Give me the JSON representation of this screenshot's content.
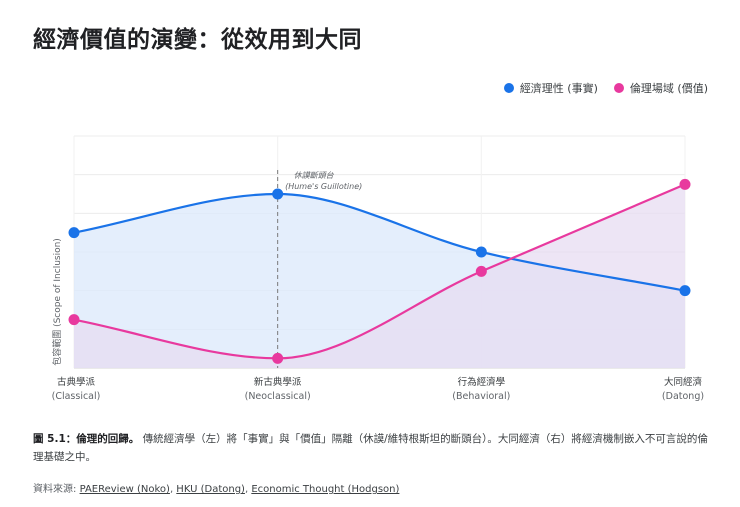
{
  "title": "經濟價值的演變：從效用到大同",
  "legend": [
    {
      "label": "經濟理性 (事實)",
      "color": "#1a73e8"
    },
    {
      "label": "倫理場域 (價值)",
      "color": "#e8399e"
    }
  ],
  "chart_data": {
    "type": "line",
    "categories": [
      {
        "name": "古典學派",
        "sub": "(Classical)"
      },
      {
        "name": "新古典學派",
        "sub": "(Neoclassical)"
      },
      {
        "name": "行為經濟學",
        "sub": "(Behavioral)"
      },
      {
        "name": "大同經濟",
        "sub": "(Datong)"
      }
    ],
    "ylabel": "包容範圍 (Scope of Inclusion)",
    "ylim": [
      0,
      6
    ],
    "grid": true,
    "legend_position": "top-right",
    "series": [
      {
        "name": "經濟理性 (事實)",
        "color": "#1a73e8",
        "fill": "#dbe8fb",
        "values": [
          3.5,
          4.5,
          3.0,
          2.0
        ]
      },
      {
        "name": "倫理場域 (價值)",
        "color": "#e8399e",
        "fill": "#e7dcf2",
        "values": [
          1.25,
          0.25,
          2.5,
          4.75
        ]
      }
    ],
    "annotation": {
      "category_index": 1,
      "line1": "休謨斷頭台",
      "line2": "(Hume's Guillotine)"
    }
  },
  "caption": {
    "label": "圖 5.1：倫理的回歸。",
    "text": "傳統經濟學（左）將「事實」與「價值」隔離（休謨/維特根斯坦的斷頭台）。大同經濟（右）將經濟機制嵌入不可言說的倫理基礎之中。"
  },
  "source": {
    "prefix": "資料來源:",
    "links": [
      "PAEReview (Noko)",
      "HKU (Datong)",
      "Economic Thought (Hodgson)"
    ]
  }
}
